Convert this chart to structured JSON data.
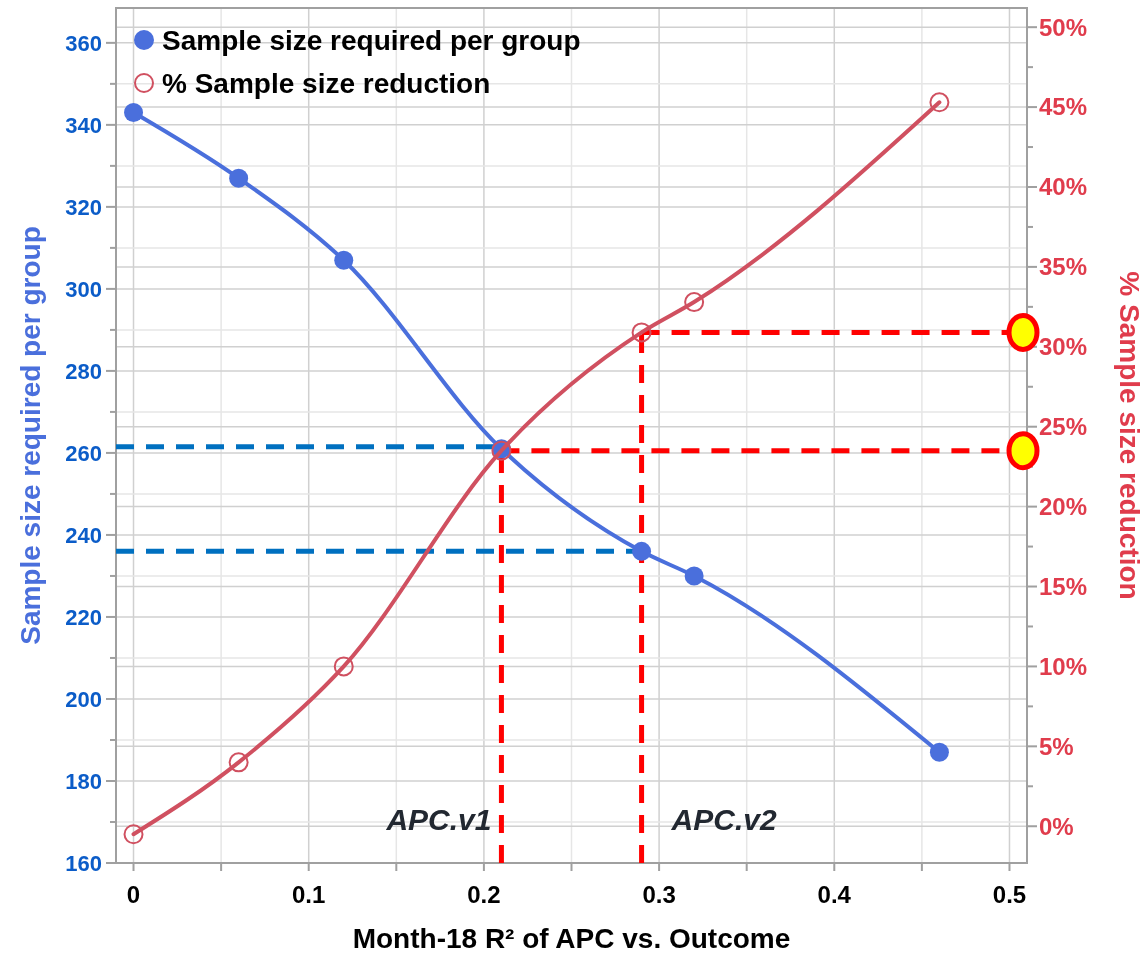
{
  "chart_data": {
    "type": "line",
    "xlabel": "Month-18 R² of APC vs. Outcome",
    "ylabel": "Sample size required per group",
    "y2label": "% Sample size reduction",
    "x": [
      0,
      0.06,
      0.12,
      0.21,
      0.29,
      0.32,
      0.46
    ],
    "series": [
      {
        "name": "Sample size required per group",
        "color": "#4a6fdc",
        "values": [
          343,
          327,
          307,
          261,
          236,
          230,
          187
        ]
      },
      {
        "name": "% Sample size reduction",
        "color": "#d05060",
        "axis": "y2",
        "values": [
          -0.5,
          4,
          10,
          23.5,
          30.9,
          32.8,
          45.3
        ]
      }
    ],
    "xlim": [
      -0.01,
      0.51
    ],
    "xticks": [
      0,
      {
        "value": 0.05,
        "label": null
      },
      0.1,
      {
        "value": 0.15,
        "label": null
      },
      0.2,
      {
        "value": 0.25,
        "label": null
      },
      0.3,
      {
        "value": 0.35,
        "label": null
      },
      0.4,
      {
        "value": 0.45,
        "label": null
      },
      0.5
    ],
    "ylim": [
      160,
      368.5
    ],
    "yticks": [
      160,
      {
        "value": 170,
        "label": null
      },
      180,
      {
        "value": 190,
        "label": null
      },
      200,
      {
        "value": 210,
        "label": null
      },
      220,
      {
        "value": 230,
        "label": null
      },
      240,
      {
        "value": 250,
        "label": null
      },
      260,
      {
        "value": 270,
        "label": null
      },
      280,
      {
        "value": 290,
        "label": null
      },
      300,
      {
        "value": 310,
        "label": null
      },
      320,
      {
        "value": 330,
        "label": null
      },
      340,
      {
        "value": 350,
        "label": null
      },
      360
    ],
    "y2lim": [
      -2.3,
      51.2
    ],
    "y2ticks": [
      {
        "value": 0,
        "label": "0%"
      },
      {
        "value": 2.5,
        "label": null
      },
      {
        "value": 5,
        "label": "5%"
      },
      {
        "value": 7.5,
        "label": null
      },
      {
        "value": 10,
        "label": "10%"
      },
      {
        "value": 12.5,
        "label": null
      },
      {
        "value": 15,
        "label": "15%"
      },
      {
        "value": 17.5,
        "label": null
      },
      {
        "value": 20,
        "label": "20%"
      },
      {
        "value": 22.5,
        "label": null
      },
      {
        "value": 25,
        "label": "25%"
      },
      {
        "value": 27.5,
        "label": null
      },
      {
        "value": 30,
        "label": "30%"
      },
      {
        "value": 32.5,
        "label": null
      },
      {
        "value": 35,
        "label": "35%"
      },
      {
        "value": 37.5,
        "label": null
      },
      {
        "value": 40,
        "label": "40%"
      },
      {
        "value": 42.5,
        "label": null
      },
      {
        "value": 45,
        "label": "45%"
      },
      {
        "value": 47.5,
        "label": null
      },
      {
        "value": 50,
        "label": "50%"
      }
    ],
    "ref_lines": [
      {
        "axis": "x",
        "value": 0.21,
        "color": "#ff0000",
        "line_style": "dashed"
      },
      {
        "axis": "x",
        "value": 0.29,
        "color": "#ff0000",
        "line_style": "dashed"
      },
      {
        "axis": "y",
        "value": 261.5,
        "color": "#0070c0",
        "line_style": "dashed"
      },
      {
        "axis": "y",
        "value": 236,
        "color": "#0070c0",
        "line_style": "dashed"
      },
      {
        "axis": "y2",
        "value": 23.5,
        "color": "#ff0000",
        "line_style": "dashed"
      },
      {
        "axis": "y2",
        "value": 30.9,
        "color": "#ff0000",
        "line_style": "dashed"
      }
    ],
    "annotations": [
      {
        "text": "APC.v1",
        "x": 0.21,
        "y": 168
      },
      {
        "text": "APC.v2",
        "x": 0.29,
        "y": 168
      }
    ],
    "grid": true,
    "legend": "top left",
    "marker": "circle",
    "line_style": "solid"
  }
}
